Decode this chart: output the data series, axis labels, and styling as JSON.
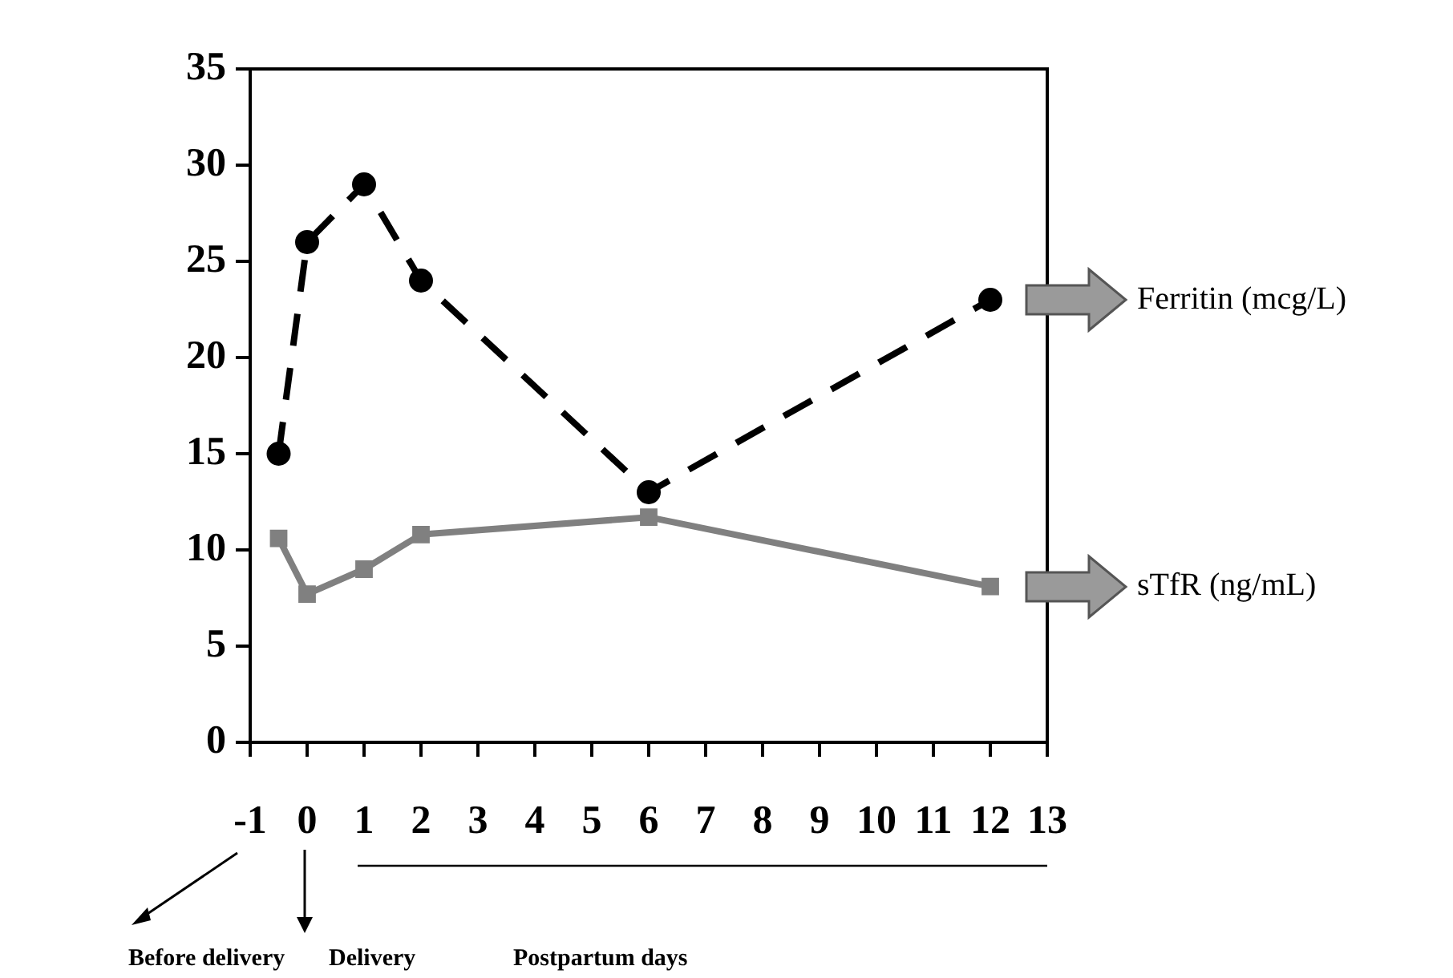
{
  "chart_data": {
    "type": "line",
    "x": [
      -0.5,
      0,
      1,
      2,
      6,
      12
    ],
    "xlim": [
      -1,
      13
    ],
    "xticks": [
      -1,
      0,
      1,
      2,
      3,
      4,
      5,
      6,
      7,
      8,
      9,
      10,
      11,
      12,
      13
    ],
    "ylim": [
      0,
      35
    ],
    "yticks": [
      0,
      5,
      10,
      15,
      20,
      25,
      30,
      35
    ],
    "grid": false,
    "legend": false,
    "series": [
      {
        "name": "Ferritin (mcg/L)",
        "color": "#000000",
        "marker": "circle",
        "line_style": "dashed",
        "values": [
          15,
          26,
          29,
          24,
          13,
          23
        ]
      },
      {
        "name": "sTfR (ng/mL)",
        "color": "#808080",
        "marker": "square",
        "line_style": "solid",
        "values": [
          10.6,
          7.7,
          9,
          10.8,
          11.7,
          8.1
        ]
      }
    ],
    "annotations": [
      "Before delivery",
      "Delivery",
      "Postpartum days"
    ]
  }
}
